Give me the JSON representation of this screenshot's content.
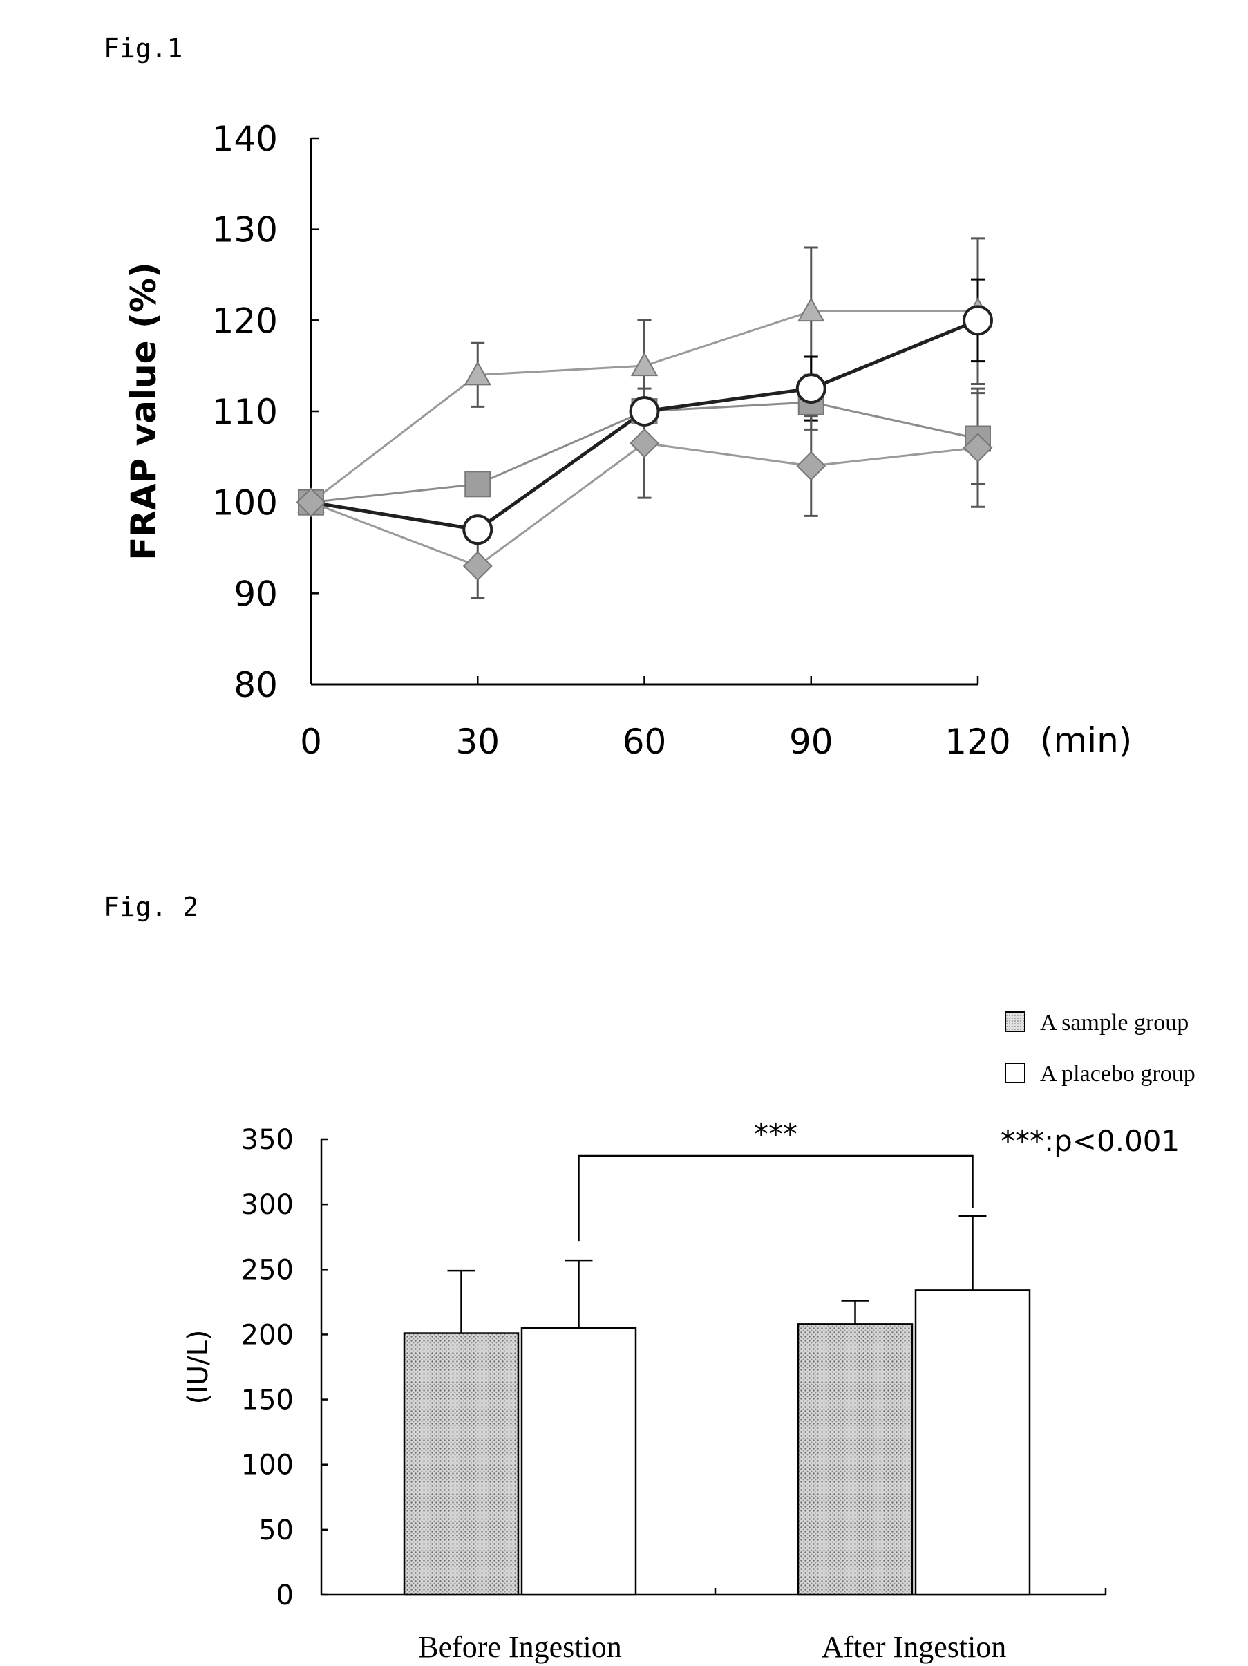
{
  "figures": {
    "fig1_label": "Fig.1",
    "fig2_label": "Fig. 2"
  },
  "chart_data": [
    {
      "type": "line",
      "ylabel": "FRAP value (%)",
      "xunit": "(min)",
      "x": [
        0,
        30,
        60,
        90,
        120
      ],
      "ylim": [
        80,
        140
      ],
      "yticks": [
        80,
        90,
        100,
        110,
        120,
        130,
        140
      ],
      "xticks": [
        0,
        30,
        60,
        90,
        120
      ],
      "grid": false,
      "series": [
        {
          "marker": "triangle",
          "color": "#9a9a9a",
          "values": [
            100,
            114,
            115,
            121,
            121
          ],
          "err": [
            0,
            3.5,
            5,
            7,
            8
          ]
        },
        {
          "marker": "square",
          "color": "#8c8c8c",
          "values": [
            100,
            102,
            110,
            111,
            107
          ],
          "err": [
            0,
            0,
            0,
            3,
            5
          ]
        },
        {
          "marker": "circle-open",
          "color": "#202020",
          "values": [
            100,
            97,
            110,
            112.5,
            120
          ],
          "err": [
            0,
            0,
            0,
            3.5,
            4.5
          ]
        },
        {
          "marker": "diamond",
          "color": "#9a9a9a",
          "values": [
            100,
            93,
            106.5,
            104,
            106
          ],
          "err": [
            0,
            3.5,
            6,
            5.5,
            6.5
          ]
        }
      ]
    },
    {
      "type": "bar",
      "ylabel": "(IU/L)",
      "categories": [
        "Before Ingestion",
        "After Ingestion"
      ],
      "ylim": [
        0,
        350
      ],
      "yticks": [
        0,
        50,
        100,
        150,
        200,
        250,
        300,
        350
      ],
      "grid": false,
      "legend_position": "top-right",
      "series": [
        {
          "name": "A sample group",
          "pattern": "dotted-gray",
          "values": [
            201,
            208
          ],
          "err": [
            48,
            18
          ]
        },
        {
          "name": "A placebo group",
          "pattern": "white",
          "values": [
            205,
            234
          ],
          "err": [
            52,
            57
          ]
        }
      ],
      "significance": {
        "label": "***",
        "note": "***:p<0.001"
      }
    }
  ]
}
